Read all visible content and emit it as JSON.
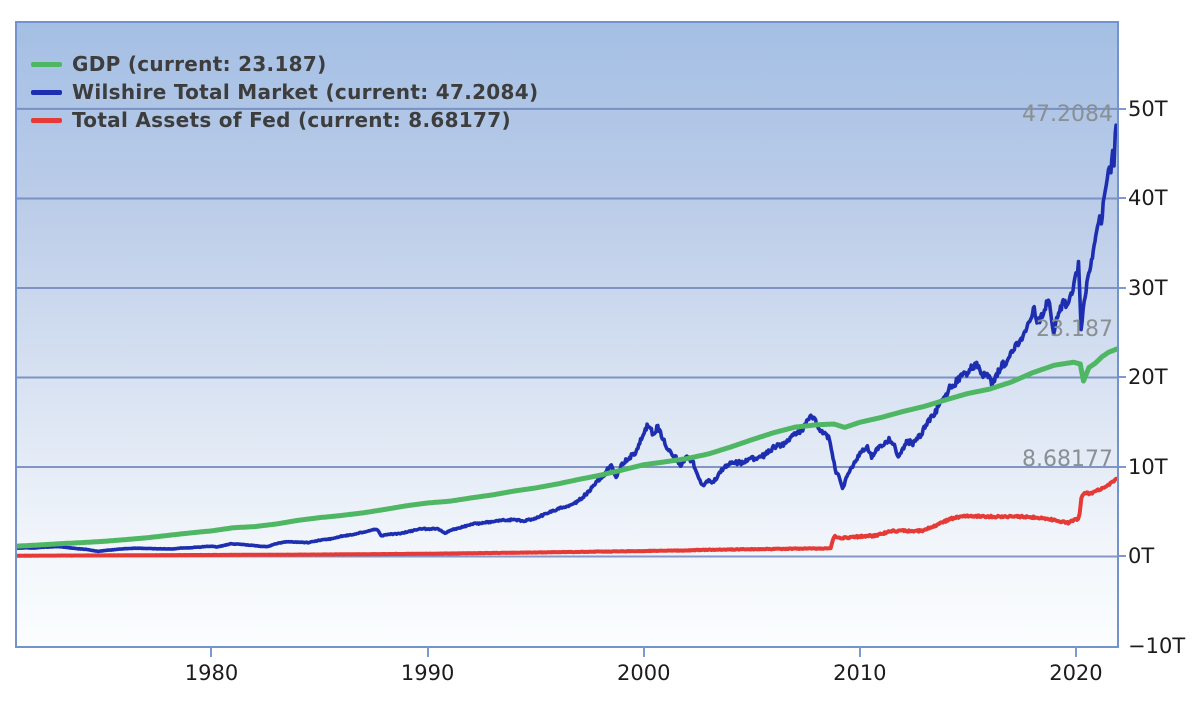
{
  "legend": {
    "items": [
      {
        "id": "gdp",
        "label": "GDP (current: 23.187)",
        "color": "#4FB763"
      },
      {
        "id": "wilshire",
        "label": "Wilshire Total Market (current: 47.2084)",
        "color": "#1D2FB0"
      },
      {
        "id": "fed",
        "label": "Total Assets of Fed (current: 8.68177)",
        "color": "#E63A36"
      }
    ]
  },
  "colors": {
    "plot_border": "#7492CC",
    "grid_line": "#7187BD",
    "tick_mark": "#7B99D2",
    "axis_text": "#1C1C1C",
    "value_label_text": "#8A8F94",
    "bg_top": "#A4BFE4",
    "bg_bottom": "#FBFDFE"
  },
  "chart_data": {
    "type": "line",
    "title": "",
    "xlabel": "",
    "ylabel": "",
    "grid": true,
    "legend_position": "top-left",
    "x_axis": {
      "range": [
        1971.0,
        2021.9
      ],
      "ticks": [
        {
          "v": 1980,
          "label": "1980"
        },
        {
          "v": 1990,
          "label": "1990"
        },
        {
          "v": 2000,
          "label": "2000"
        },
        {
          "v": 2010,
          "label": "2010"
        },
        {
          "v": 2020,
          "label": "2020"
        }
      ]
    },
    "y_axis": {
      "range": [
        -10,
        59.6
      ],
      "unit": "trillions USD",
      "gridlines": [
        0,
        10,
        20,
        30,
        40,
        50
      ],
      "ticks": [
        {
          "v": 50,
          "label": "50T"
        },
        {
          "v": 40,
          "label": "40T"
        },
        {
          "v": 30,
          "label": "30T"
        },
        {
          "v": 20,
          "label": "20T"
        },
        {
          "v": 10,
          "label": "10T"
        },
        {
          "v": 0,
          "label": "0T"
        },
        {
          "v": -10,
          "label": "−10T"
        }
      ]
    },
    "draw_order": [
      "wilshire",
      "gdp",
      "fed"
    ],
    "series": [
      {
        "id": "gdp",
        "name": "GDP",
        "color": "#4FB763",
        "width": 5,
        "noise": 0,
        "noise_cap": 0,
        "current": 23.187,
        "current_label": "23.187",
        "points": [
          [
            1971.0,
            1.16
          ],
          [
            1972,
            1.28
          ],
          [
            1973,
            1.43
          ],
          [
            1974,
            1.55
          ],
          [
            1975,
            1.69
          ],
          [
            1976,
            1.88
          ],
          [
            1977,
            2.09
          ],
          [
            1978,
            2.36
          ],
          [
            1979,
            2.63
          ],
          [
            1980,
            2.86
          ],
          [
            1981,
            3.21
          ],
          [
            1982,
            3.34
          ],
          [
            1983,
            3.63
          ],
          [
            1984,
            4.04
          ],
          [
            1985,
            4.34
          ],
          [
            1986,
            4.58
          ],
          [
            1987,
            4.87
          ],
          [
            1988,
            5.25
          ],
          [
            1989,
            5.66
          ],
          [
            1990,
            5.98
          ],
          [
            1991,
            6.17
          ],
          [
            1992,
            6.54
          ],
          [
            1993,
            6.88
          ],
          [
            1994,
            7.31
          ],
          [
            1995,
            7.66
          ],
          [
            1996,
            8.1
          ],
          [
            1997,
            8.61
          ],
          [
            1998,
            9.09
          ],
          [
            1999,
            9.66
          ],
          [
            2000,
            10.25
          ],
          [
            2001,
            10.58
          ],
          [
            2002,
            10.94
          ],
          [
            2003,
            11.46
          ],
          [
            2004,
            12.21
          ],
          [
            2005,
            13.04
          ],
          [
            2006,
            13.82
          ],
          [
            2007,
            14.45
          ],
          [
            2008,
            14.71
          ],
          [
            2008.8,
            14.8
          ],
          [
            2009.3,
            14.42
          ],
          [
            2010,
            14.99
          ],
          [
            2011,
            15.54
          ],
          [
            2012,
            16.2
          ],
          [
            2013,
            16.78
          ],
          [
            2014,
            17.52
          ],
          [
            2015,
            18.21
          ],
          [
            2016,
            18.7
          ],
          [
            2017,
            19.48
          ],
          [
            2018,
            20.53
          ],
          [
            2019,
            21.37
          ],
          [
            2019.9,
            21.7
          ],
          [
            2020.2,
            21.5
          ],
          [
            2020.35,
            19.6
          ],
          [
            2020.6,
            21.1
          ],
          [
            2020.9,
            21.6
          ],
          [
            2021.2,
            22.3
          ],
          [
            2021.5,
            22.8
          ],
          [
            2021.9,
            23.187
          ]
        ]
      },
      {
        "id": "wilshire",
        "name": "Wilshire Total Market",
        "color": "#1D2FB0",
        "width": 3.6,
        "noise": 0.022,
        "noise_cap": 0.45,
        "current": 47.2084,
        "current_label": "47.2084",
        "points": [
          [
            1971.0,
            0.92
          ],
          [
            1971.4,
            0.98
          ],
          [
            1971.8,
            0.95
          ],
          [
            1972.2,
            1.03
          ],
          [
            1972.9,
            1.12
          ],
          [
            1973.3,
            1.0
          ],
          [
            1973.8,
            0.88
          ],
          [
            1974.3,
            0.76
          ],
          [
            1974.75,
            0.57
          ],
          [
            1975.1,
            0.68
          ],
          [
            1975.5,
            0.76
          ],
          [
            1976.0,
            0.88
          ],
          [
            1976.5,
            0.93
          ],
          [
            1977.0,
            0.9
          ],
          [
            1977.5,
            0.86
          ],
          [
            1978.2,
            0.84
          ],
          [
            1978.6,
            0.94
          ],
          [
            1979.0,
            0.98
          ],
          [
            1979.5,
            1.06
          ],
          [
            1980.0,
            1.16
          ],
          [
            1980.25,
            1.05
          ],
          [
            1980.9,
            1.42
          ],
          [
            1981.3,
            1.36
          ],
          [
            1981.8,
            1.26
          ],
          [
            1982.3,
            1.14
          ],
          [
            1982.6,
            1.1
          ],
          [
            1982.95,
            1.42
          ],
          [
            1983.5,
            1.66
          ],
          [
            1984.0,
            1.6
          ],
          [
            1984.5,
            1.56
          ],
          [
            1985.0,
            1.82
          ],
          [
            1985.5,
            1.96
          ],
          [
            1986.0,
            2.26
          ],
          [
            1986.5,
            2.42
          ],
          [
            1987.0,
            2.72
          ],
          [
            1987.65,
            3.06
          ],
          [
            1987.85,
            2.32
          ],
          [
            1988.2,
            2.46
          ],
          [
            1988.7,
            2.56
          ],
          [
            1989.2,
            2.82
          ],
          [
            1989.7,
            3.12
          ],
          [
            1990.0,
            3.06
          ],
          [
            1990.45,
            3.12
          ],
          [
            1990.8,
            2.62
          ],
          [
            1991.1,
            2.96
          ],
          [
            1991.5,
            3.22
          ],
          [
            1992.0,
            3.6
          ],
          [
            1992.5,
            3.72
          ],
          [
            1993.0,
            3.92
          ],
          [
            1993.6,
            4.06
          ],
          [
            1994.0,
            4.12
          ],
          [
            1994.4,
            3.96
          ],
          [
            1994.9,
            4.18
          ],
          [
            1995.4,
            4.7
          ],
          [
            1995.9,
            5.2
          ],
          [
            1996.3,
            5.55
          ],
          [
            1996.7,
            5.75
          ],
          [
            1997.0,
            6.3
          ],
          [
            1997.4,
            7.1
          ],
          [
            1997.8,
            8.3
          ],
          [
            1998.1,
            8.9
          ],
          [
            1998.5,
            10.3
          ],
          [
            1998.72,
            8.9
          ],
          [
            1999.0,
            10.3
          ],
          [
            1999.3,
            11.0
          ],
          [
            1999.6,
            11.6
          ],
          [
            1999.9,
            13.2
          ],
          [
            2000.2,
            14.7
          ],
          [
            2000.4,
            13.8
          ],
          [
            2000.65,
            14.4
          ],
          [
            2000.9,
            13.1
          ],
          [
            2001.15,
            11.9
          ],
          [
            2001.45,
            11.2
          ],
          [
            2001.7,
            10.1
          ],
          [
            2001.95,
            11.1
          ],
          [
            2002.25,
            10.7
          ],
          [
            2002.6,
            8.4
          ],
          [
            2002.78,
            7.9
          ],
          [
            2003.05,
            8.6
          ],
          [
            2003.2,
            8.2
          ],
          [
            2003.6,
            9.6
          ],
          [
            2004.0,
            10.4
          ],
          [
            2004.6,
            10.5
          ],
          [
            2005.0,
            10.9
          ],
          [
            2005.6,
            11.3
          ],
          [
            2006.0,
            12.2
          ],
          [
            2006.6,
            12.7
          ],
          [
            2007.0,
            13.6
          ],
          [
            2007.4,
            14.3
          ],
          [
            2007.78,
            15.9
          ],
          [
            2008.0,
            14.9
          ],
          [
            2008.25,
            13.9
          ],
          [
            2008.55,
            13.2
          ],
          [
            2008.72,
            11.6
          ],
          [
            2008.9,
            9.4
          ],
          [
            2009.05,
            8.9
          ],
          [
            2009.2,
            7.6
          ],
          [
            2009.45,
            9.2
          ],
          [
            2009.75,
            10.4
          ],
          [
            2010.05,
            11.6
          ],
          [
            2010.35,
            12.2
          ],
          [
            2010.55,
            11.1
          ],
          [
            2010.8,
            12.0
          ],
          [
            2011.05,
            12.5
          ],
          [
            2011.35,
            13.0
          ],
          [
            2011.6,
            12.4
          ],
          [
            2011.78,
            11.0
          ],
          [
            2011.95,
            11.9
          ],
          [
            2012.2,
            12.9
          ],
          [
            2012.45,
            12.6
          ],
          [
            2012.8,
            13.5
          ],
          [
            2013.1,
            14.8
          ],
          [
            2013.5,
            16.2
          ],
          [
            2013.9,
            17.8
          ],
          [
            2014.2,
            18.9
          ],
          [
            2014.6,
            19.8
          ],
          [
            2014.95,
            20.5
          ],
          [
            2015.2,
            21.1
          ],
          [
            2015.45,
            21.4
          ],
          [
            2015.65,
            20.1
          ],
          [
            2015.85,
            20.7
          ],
          [
            2016.1,
            19.2
          ],
          [
            2016.45,
            20.9
          ],
          [
            2016.85,
            22.0
          ],
          [
            2017.15,
            23.3
          ],
          [
            2017.55,
            24.6
          ],
          [
            2017.95,
            26.5
          ],
          [
            2018.07,
            27.8
          ],
          [
            2018.2,
            25.9
          ],
          [
            2018.45,
            26.9
          ],
          [
            2018.73,
            28.8
          ],
          [
            2018.97,
            24.7
          ],
          [
            2019.2,
            27.3
          ],
          [
            2019.45,
            28.6
          ],
          [
            2019.62,
            27.9
          ],
          [
            2019.82,
            29.6
          ],
          [
            2020.0,
            31.5
          ],
          [
            2020.12,
            32.6
          ],
          [
            2020.18,
            29.0
          ],
          [
            2020.24,
            25.6
          ],
          [
            2020.38,
            28.6
          ],
          [
            2020.55,
            30.8
          ],
          [
            2020.72,
            32.8
          ],
          [
            2020.88,
            35.0
          ],
          [
            2021.0,
            37.0
          ],
          [
            2021.1,
            38.4
          ],
          [
            2021.18,
            37.4
          ],
          [
            2021.3,
            40.2
          ],
          [
            2021.45,
            42.2
          ],
          [
            2021.55,
            43.9
          ],
          [
            2021.62,
            42.9
          ],
          [
            2021.7,
            45.2
          ],
          [
            2021.76,
            43.9
          ],
          [
            2021.82,
            47.6
          ],
          [
            2021.86,
            48.3
          ],
          [
            2021.9,
            47.2084
          ]
        ]
      },
      {
        "id": "fed",
        "name": "Total Assets of Fed",
        "color": "#E63A36",
        "width": 4,
        "noise": 0.05,
        "noise_cap": 0.1,
        "current": 8.68177,
        "current_label": "8.68177",
        "points": [
          [
            1971.0,
            0.09
          ],
          [
            1975,
            0.12
          ],
          [
            1980,
            0.17
          ],
          [
            1985,
            0.22
          ],
          [
            1990,
            0.31
          ],
          [
            1995,
            0.45
          ],
          [
            2000,
            0.61
          ],
          [
            2000.9,
            0.65
          ],
          [
            2001.7,
            0.66
          ],
          [
            2003,
            0.75
          ],
          [
            2005,
            0.81
          ],
          [
            2007,
            0.87
          ],
          [
            2008.3,
            0.9
          ],
          [
            2008.65,
            0.95
          ],
          [
            2008.75,
            1.9
          ],
          [
            2008.85,
            2.25
          ],
          [
            2009.1,
            2.05
          ],
          [
            2009.5,
            2.1
          ],
          [
            2009.9,
            2.2
          ],
          [
            2010.3,
            2.3
          ],
          [
            2010.6,
            2.3
          ],
          [
            2010.9,
            2.45
          ],
          [
            2011.2,
            2.65
          ],
          [
            2011.5,
            2.85
          ],
          [
            2012.0,
            2.88
          ],
          [
            2012.5,
            2.82
          ],
          [
            2012.9,
            2.9
          ],
          [
            2013.3,
            3.25
          ],
          [
            2013.8,
            3.8
          ],
          [
            2014.2,
            4.2
          ],
          [
            2014.7,
            4.48
          ],
          [
            2015.2,
            4.5
          ],
          [
            2015.8,
            4.47
          ],
          [
            2016.3,
            4.45
          ],
          [
            2016.9,
            4.45
          ],
          [
            2017.5,
            4.46
          ],
          [
            2017.9,
            4.4
          ],
          [
            2018.4,
            4.3
          ],
          [
            2018.9,
            4.1
          ],
          [
            2019.3,
            3.9
          ],
          [
            2019.65,
            3.76
          ],
          [
            2019.8,
            3.95
          ],
          [
            2019.95,
            4.15
          ],
          [
            2020.1,
            4.2
          ],
          [
            2020.17,
            4.7
          ],
          [
            2020.25,
            6.4
          ],
          [
            2020.35,
            7.0
          ],
          [
            2020.5,
            7.1
          ],
          [
            2020.65,
            7.0
          ],
          [
            2020.85,
            7.2
          ],
          [
            2021.1,
            7.5
          ],
          [
            2021.3,
            7.7
          ],
          [
            2021.5,
            8.0
          ],
          [
            2021.7,
            8.35
          ],
          [
            2021.9,
            8.68177
          ]
        ]
      }
    ]
  }
}
